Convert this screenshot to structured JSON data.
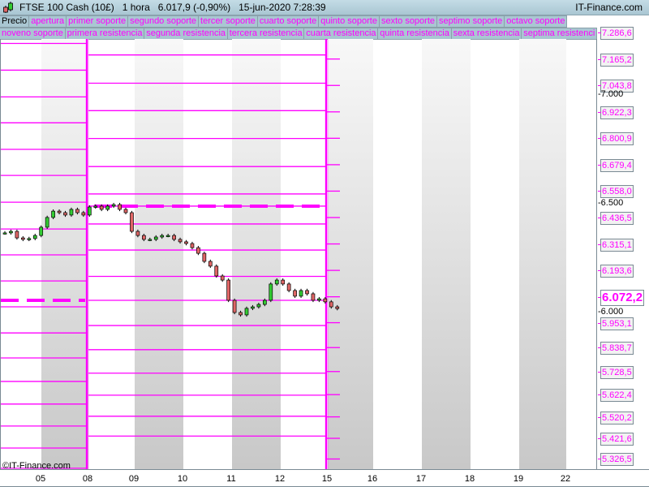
{
  "header": {
    "title": "FTSE 100 Cash (10£)   1 hora   6.017,9 (-0,90%)   15-jun-2020 7:28:39",
    "brand": "IT-Finance.com",
    "logo_icon": "candlestick-icon"
  },
  "legend": {
    "row1": [
      "Precio",
      "apertura",
      "primer soporte",
      "segundo soporte",
      "tercer soporte",
      "cuarto soporte",
      "quinto soporte",
      "sexto soporte",
      "septimo soporte",
      "octavo soporte"
    ],
    "row2": [
      "noveno soporte",
      "primera resistencia",
      "segunda resistencia",
      "tercera resistencia",
      "cuarta resistencia",
      "quinta resistencia",
      "sexta resistencia",
      "septima resistenci"
    ]
  },
  "copyright": "©IT-Finance.com",
  "colors": {
    "levels": "#ff00ff",
    "up": "#33cc33",
    "down": "#e06666",
    "shade": "#cccccc"
  },
  "chart_data": {
    "type": "candlestick",
    "interval": "1 hora",
    "x_tick_labels": [
      "05",
      "08",
      "09",
      "10",
      "11",
      "12",
      "15",
      "16",
      "17",
      "18",
      "19",
      "22"
    ],
    "y_ticks": [
      "7.000",
      "6.500",
      "6.000"
    ],
    "y_tick_values": [
      7000,
      6500,
      6000
    ],
    "ylim": [
      5290,
      7330
    ],
    "current_price_label": "6.072,2",
    "current_price": 6072.2,
    "level_labels": [
      "7.286,6",
      "7.165,2",
      "7.043,8",
      "6.922,3",
      "6.800,9",
      "6.679,4",
      "6.558,0",
      "6.436,5",
      "6.315,1",
      "6.193,6",
      "6.072,2",
      "5.953,1",
      "5.838,7",
      "5.728,5",
      "5.622,4",
      "5.520,2",
      "5.421,6",
      "5.326,5"
    ],
    "level_values": [
      7286.6,
      7165.2,
      7043.8,
      6922.3,
      6800.9,
      6679.4,
      6558.0,
      6436.5,
      6315.1,
      6193.6,
      6072.2,
      5953.1,
      5838.7,
      5728.5,
      5622.4,
      5520.2,
      5421.6,
      5326.5
    ],
    "prev_week_levels": [
      7184,
      7054,
      6928,
      6800,
      6671,
      6545,
      6489,
      6407,
      6287,
      6166,
      6056,
      5940,
      5829,
      5721,
      5620,
      5523,
      5432
    ],
    "prev_week_open": 6489,
    "two_weeks_ago_levels": [
      7237,
      7114,
      6991,
      6872,
      6750,
      6630,
      6507,
      6384,
      6265,
      6145,
      6026,
      5906,
      5791,
      5683,
      5579,
      5478,
      5377,
      5284
    ],
    "two_weeks_ago_open": 6056,
    "closes": [
      6366,
      6373,
      6343,
      6336,
      6340,
      6354,
      6392,
      6437,
      6466,
      6459,
      6448,
      6474,
      6459,
      6448,
      6485,
      6489,
      6474,
      6489,
      6496,
      6474,
      6459,
      6373,
      6354,
      6336,
      6336,
      6347,
      6354,
      6354,
      6336,
      6325,
      6317,
      6298,
      6272,
      6235,
      6213,
      6168,
      6149,
      6056,
      6000,
      5989,
      6019,
      6026,
      6037,
      6056,
      6131,
      6149,
      6131,
      6101,
      6075,
      6101,
      6086,
      6056,
      6063,
      6049,
      6026,
      6018
    ]
  }
}
